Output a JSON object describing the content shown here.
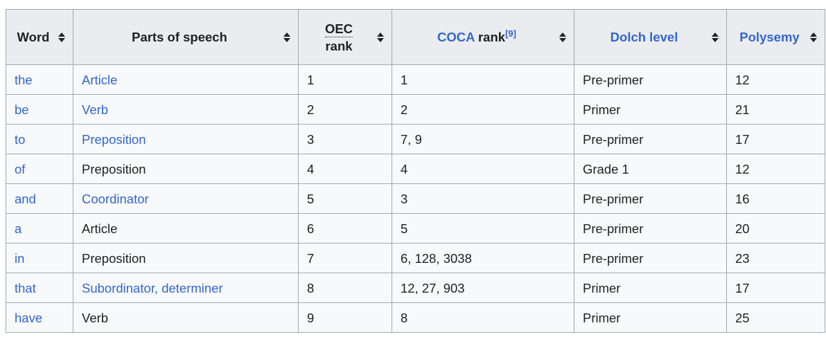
{
  "theme": {
    "link_color": "#3366cc",
    "header_bg": "#eaecf0",
    "row_bg": "#f8f9fa",
    "border_color": "#a2a9b1",
    "text_color": "#202122"
  },
  "table": {
    "headers": {
      "word": {
        "label": "Word"
      },
      "pos": {
        "label": "Parts of speech"
      },
      "oec": {
        "abbr": "OEC",
        "rest": "rank"
      },
      "coca": {
        "link": "COCA",
        "rest": " rank",
        "ref": "[9]"
      },
      "dolch": {
        "label": "Dolch level"
      },
      "polysemy": {
        "label": "Polysemy"
      }
    },
    "rows": [
      {
        "word": "the",
        "pos": [
          {
            "text": "Article",
            "link": true
          }
        ],
        "oec_rank": "1",
        "coca_rank": "1",
        "dolch_level": "Pre-primer",
        "polysemy": "12"
      },
      {
        "word": "be",
        "pos": [
          {
            "text": "Verb",
            "link": true
          }
        ],
        "oec_rank": "2",
        "coca_rank": "2",
        "dolch_level": "Primer",
        "polysemy": "21"
      },
      {
        "word": "to",
        "pos": [
          {
            "text": "Preposition",
            "link": true
          }
        ],
        "oec_rank": "3",
        "coca_rank": "7, 9",
        "dolch_level": "Pre-primer",
        "polysemy": "17"
      },
      {
        "word": "of",
        "pos": [
          {
            "text": "Preposition",
            "link": false
          }
        ],
        "oec_rank": "4",
        "coca_rank": "4",
        "dolch_level": "Grade 1",
        "polysemy": "12"
      },
      {
        "word": "and",
        "pos": [
          {
            "text": "Coordinator",
            "link": true
          }
        ],
        "oec_rank": "5",
        "coca_rank": "3",
        "dolch_level": "Pre-primer",
        "polysemy": "16"
      },
      {
        "word": "a",
        "pos": [
          {
            "text": "Article",
            "link": false
          }
        ],
        "oec_rank": "6",
        "coca_rank": "5",
        "dolch_level": "Pre-primer",
        "polysemy": "20"
      },
      {
        "word": "in",
        "pos": [
          {
            "text": "Preposition",
            "link": false
          }
        ],
        "oec_rank": "7",
        "coca_rank": "6, 128, 3038",
        "dolch_level": "Pre-primer",
        "polysemy": "23"
      },
      {
        "word": "that",
        "pos": [
          {
            "text": "Subordinator,",
            "link": true
          },
          {
            "text": " ",
            "link": false
          },
          {
            "text": "determiner",
            "link": true
          }
        ],
        "oec_rank": "8",
        "coca_rank": "12, 27, 903",
        "dolch_level": "Primer",
        "polysemy": "17"
      },
      {
        "word": "have",
        "pos": [
          {
            "text": "Verb",
            "link": false
          }
        ],
        "oec_rank": "9",
        "coca_rank": "8",
        "dolch_level": "Primer",
        "polysemy": "25"
      }
    ]
  }
}
